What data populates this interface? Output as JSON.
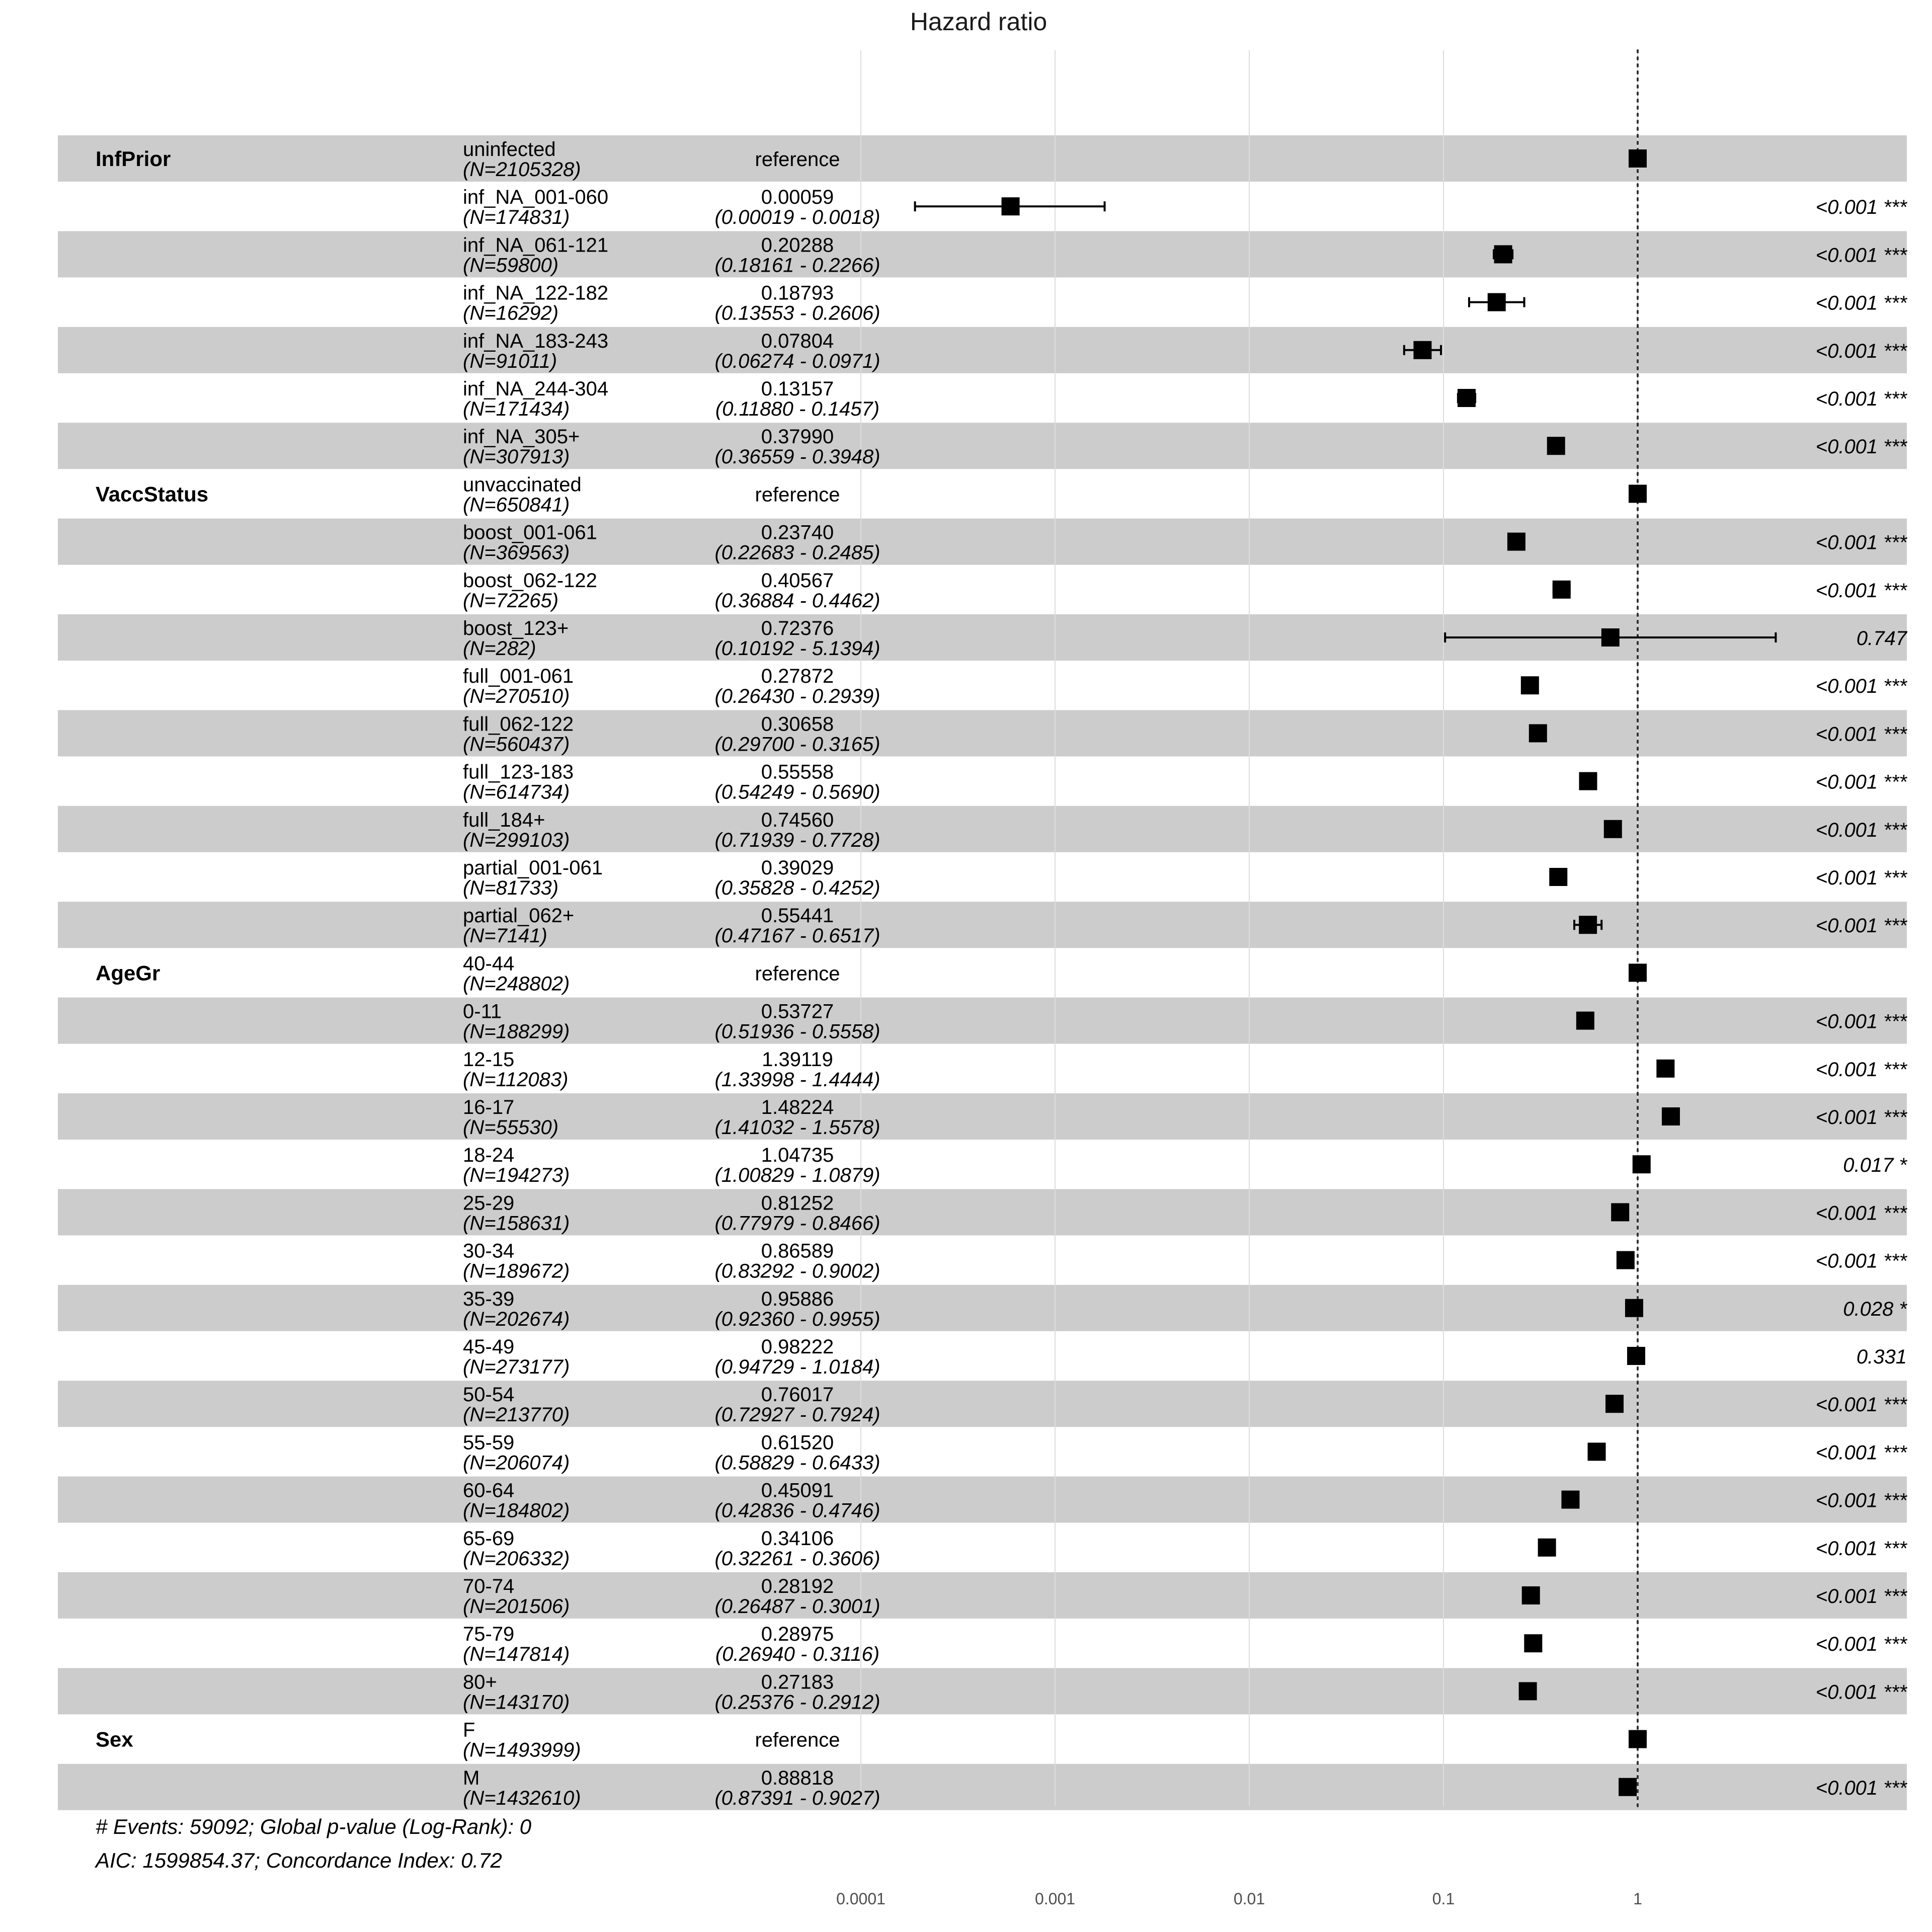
{
  "chart_data": {
    "type": "forest",
    "title": "Hazard ratio",
    "x_scale": "log",
    "xlim": [
      0.0001,
      10
    ],
    "x_ticks": [
      "0.0001",
      "0.001",
      "0.01",
      "0.1",
      "1"
    ],
    "x_tick_values": [
      0.0001,
      0.001,
      0.01,
      0.1,
      1
    ],
    "reference_line": 1,
    "rows": [
      {
        "variable": "InfPrior",
        "level": "uninfected",
        "n": "(N=2105328)",
        "hr": 1,
        "hr_label": "reference",
        "ci_label": "",
        "lo": null,
        "hi": null,
        "p": ""
      },
      {
        "variable": "",
        "level": "inf_NA_001-060",
        "n": "(N=174831)",
        "hr": 0.00059,
        "hr_label": "0.00059",
        "ci_label": "(0.00019 - 0.0018)",
        "lo": 0.00019,
        "hi": 0.0018,
        "p": "<0.001 ***"
      },
      {
        "variable": "",
        "level": "inf_NA_061-121",
        "n": "(N=59800)",
        "hr": 0.20288,
        "hr_label": "0.20288",
        "ci_label": "(0.18161 - 0.2266)",
        "lo": 0.18161,
        "hi": 0.2266,
        "p": "<0.001 ***"
      },
      {
        "variable": "",
        "level": "inf_NA_122-182",
        "n": "(N=16292)",
        "hr": 0.18793,
        "hr_label": "0.18793",
        "ci_label": "(0.13553 - 0.2606)",
        "lo": 0.13553,
        "hi": 0.2606,
        "p": "<0.001 ***"
      },
      {
        "variable": "",
        "level": "inf_NA_183-243",
        "n": "(N=91011)",
        "hr": 0.07804,
        "hr_label": "0.07804",
        "ci_label": "(0.06274 - 0.0971)",
        "lo": 0.06274,
        "hi": 0.0971,
        "p": "<0.001 ***"
      },
      {
        "variable": "",
        "level": "inf_NA_244-304",
        "n": "(N=171434)",
        "hr": 0.13157,
        "hr_label": "0.13157",
        "ci_label": "(0.11880 - 0.1457)",
        "lo": 0.1188,
        "hi": 0.1457,
        "p": "<0.001 ***"
      },
      {
        "variable": "",
        "level": "inf_NA_305+",
        "n": "(N=307913)",
        "hr": 0.3799,
        "hr_label": "0.37990",
        "ci_label": "(0.36559 - 0.3948)",
        "lo": 0.36559,
        "hi": 0.3948,
        "p": "<0.001 ***"
      },
      {
        "variable": "VaccStatus",
        "level": "unvaccinated",
        "n": "(N=650841)",
        "hr": 1,
        "hr_label": "reference",
        "ci_label": "",
        "lo": null,
        "hi": null,
        "p": ""
      },
      {
        "variable": "",
        "level": "boost_001-061",
        "n": "(N=369563)",
        "hr": 0.2374,
        "hr_label": "0.23740",
        "ci_label": "(0.22683 - 0.2485)",
        "lo": 0.22683,
        "hi": 0.2485,
        "p": "<0.001 ***"
      },
      {
        "variable": "",
        "level": "boost_062-122",
        "n": "(N=72265)",
        "hr": 0.40567,
        "hr_label": "0.40567",
        "ci_label": "(0.36884 - 0.4462)",
        "lo": 0.36884,
        "hi": 0.4462,
        "p": "<0.001 ***"
      },
      {
        "variable": "",
        "level": "boost_123+",
        "n": "(N=282)",
        "hr": 0.72376,
        "hr_label": "0.72376",
        "ci_label": "(0.10192 - 5.1394)",
        "lo": 0.10192,
        "hi": 5.1394,
        "p": "0.747"
      },
      {
        "variable": "",
        "level": "full_001-061",
        "n": "(N=270510)",
        "hr": 0.27872,
        "hr_label": "0.27872",
        "ci_label": "(0.26430 - 0.2939)",
        "lo": 0.2643,
        "hi": 0.2939,
        "p": "<0.001 ***"
      },
      {
        "variable": "",
        "level": "full_062-122",
        "n": "(N=560437)",
        "hr": 0.30658,
        "hr_label": "0.30658",
        "ci_label": "(0.29700 - 0.3165)",
        "lo": 0.297,
        "hi": 0.3165,
        "p": "<0.001 ***"
      },
      {
        "variable": "",
        "level": "full_123-183",
        "n": "(N=614734)",
        "hr": 0.55558,
        "hr_label": "0.55558",
        "ci_label": "(0.54249 - 0.5690)",
        "lo": 0.54249,
        "hi": 0.569,
        "p": "<0.001 ***"
      },
      {
        "variable": "",
        "level": "full_184+",
        "n": "(N=299103)",
        "hr": 0.7456,
        "hr_label": "0.74560",
        "ci_label": "(0.71939 - 0.7728)",
        "lo": 0.71939,
        "hi": 0.7728,
        "p": "<0.001 ***"
      },
      {
        "variable": "",
        "level": "partial_001-061",
        "n": "(N=81733)",
        "hr": 0.39029,
        "hr_label": "0.39029",
        "ci_label": "(0.35828 - 0.4252)",
        "lo": 0.35828,
        "hi": 0.4252,
        "p": "<0.001 ***"
      },
      {
        "variable": "",
        "level": "partial_062+",
        "n": "(N=7141)",
        "hr": 0.55441,
        "hr_label": "0.55441",
        "ci_label": "(0.47167 - 0.6517)",
        "lo": 0.47167,
        "hi": 0.6517,
        "p": "<0.001 ***"
      },
      {
        "variable": "AgeGr",
        "level": "40-44",
        "n": "(N=248802)",
        "hr": 1,
        "hr_label": "reference",
        "ci_label": "",
        "lo": null,
        "hi": null,
        "p": ""
      },
      {
        "variable": "",
        "level": "0-11",
        "n": "(N=188299)",
        "hr": 0.53727,
        "hr_label": "0.53727",
        "ci_label": "(0.51936 - 0.5558)",
        "lo": 0.51936,
        "hi": 0.5558,
        "p": "<0.001 ***"
      },
      {
        "variable": "",
        "level": "12-15",
        "n": "(N=112083)",
        "hr": 1.39119,
        "hr_label": "1.39119",
        "ci_label": "(1.33998 - 1.4444)",
        "lo": 1.33998,
        "hi": 1.4444,
        "p": "<0.001 ***"
      },
      {
        "variable": "",
        "level": "16-17",
        "n": "(N=55530)",
        "hr": 1.48224,
        "hr_label": "1.48224",
        "ci_label": "(1.41032 - 1.5578)",
        "lo": 1.41032,
        "hi": 1.5578,
        "p": "<0.001 ***"
      },
      {
        "variable": "",
        "level": "18-24",
        "n": "(N=194273)",
        "hr": 1.04735,
        "hr_label": "1.04735",
        "ci_label": "(1.00829 - 1.0879)",
        "lo": 1.00829,
        "hi": 1.0879,
        "p": "0.017 *"
      },
      {
        "variable": "",
        "level": "25-29",
        "n": "(N=158631)",
        "hr": 0.81252,
        "hr_label": "0.81252",
        "ci_label": "(0.77979 - 0.8466)",
        "lo": 0.77979,
        "hi": 0.8466,
        "p": "<0.001 ***"
      },
      {
        "variable": "",
        "level": "30-34",
        "n": "(N=189672)",
        "hr": 0.86589,
        "hr_label": "0.86589",
        "ci_label": "(0.83292 - 0.9002)",
        "lo": 0.83292,
        "hi": 0.9002,
        "p": "<0.001 ***"
      },
      {
        "variable": "",
        "level": "35-39",
        "n": "(N=202674)",
        "hr": 0.95886,
        "hr_label": "0.95886",
        "ci_label": "(0.92360 - 0.9955)",
        "lo": 0.9236,
        "hi": 0.9955,
        "p": "0.028 *"
      },
      {
        "variable": "",
        "level": "45-49",
        "n": "(N=273177)",
        "hr": 0.98222,
        "hr_label": "0.98222",
        "ci_label": "(0.94729 - 1.0184)",
        "lo": 0.94729,
        "hi": 1.0184,
        "p": "0.331"
      },
      {
        "variable": "",
        "level": "50-54",
        "n": "(N=213770)",
        "hr": 0.76017,
        "hr_label": "0.76017",
        "ci_label": "(0.72927 - 0.7924)",
        "lo": 0.72927,
        "hi": 0.7924,
        "p": "<0.001 ***"
      },
      {
        "variable": "",
        "level": "55-59",
        "n": "(N=206074)",
        "hr": 0.6152,
        "hr_label": "0.61520",
        "ci_label": "(0.58829 - 0.6433)",
        "lo": 0.58829,
        "hi": 0.6433,
        "p": "<0.001 ***"
      },
      {
        "variable": "",
        "level": "60-64",
        "n": "(N=184802)",
        "hr": 0.45091,
        "hr_label": "0.45091",
        "ci_label": "(0.42836 - 0.4746)",
        "lo": 0.42836,
        "hi": 0.4746,
        "p": "<0.001 ***"
      },
      {
        "variable": "",
        "level": "65-69",
        "n": "(N=206332)",
        "hr": 0.34106,
        "hr_label": "0.34106",
        "ci_label": "(0.32261 - 0.3606)",
        "lo": 0.32261,
        "hi": 0.3606,
        "p": "<0.001 ***"
      },
      {
        "variable": "",
        "level": "70-74",
        "n": "(N=201506)",
        "hr": 0.28192,
        "hr_label": "0.28192",
        "ci_label": "(0.26487 - 0.3001)",
        "lo": 0.26487,
        "hi": 0.3001,
        "p": "<0.001 ***"
      },
      {
        "variable": "",
        "level": "75-79",
        "n": "(N=147814)",
        "hr": 0.28975,
        "hr_label": "0.28975",
        "ci_label": "(0.26940 - 0.3116)",
        "lo": 0.2694,
        "hi": 0.3116,
        "p": "<0.001 ***"
      },
      {
        "variable": "",
        "level": "80+",
        "n": "(N=143170)",
        "hr": 0.27183,
        "hr_label": "0.27183",
        "ci_label": "(0.25376 - 0.2912)",
        "lo": 0.25376,
        "hi": 0.2912,
        "p": "<0.001 ***"
      },
      {
        "variable": "Sex",
        "level": "F",
        "n": "(N=1493999)",
        "hr": 1,
        "hr_label": "reference",
        "ci_label": "",
        "lo": null,
        "hi": null,
        "p": ""
      },
      {
        "variable": "",
        "level": "M",
        "n": "(N=1432610)",
        "hr": 0.88818,
        "hr_label": "0.88818",
        "ci_label": "(0.87391 - 0.9027)",
        "lo": 0.87391,
        "hi": 0.9027,
        "p": "<0.001 ***"
      }
    ],
    "footnote_1": "# Events: 59092; Global p-value (Log-Rank): 0",
    "footnote_2": "AIC: 1599854.37; Concordance Index: 0.72"
  },
  "colors": {
    "band": "#cccccc",
    "grid": "#dddddd",
    "marker": "#000000",
    "reference_line": "#333333"
  }
}
